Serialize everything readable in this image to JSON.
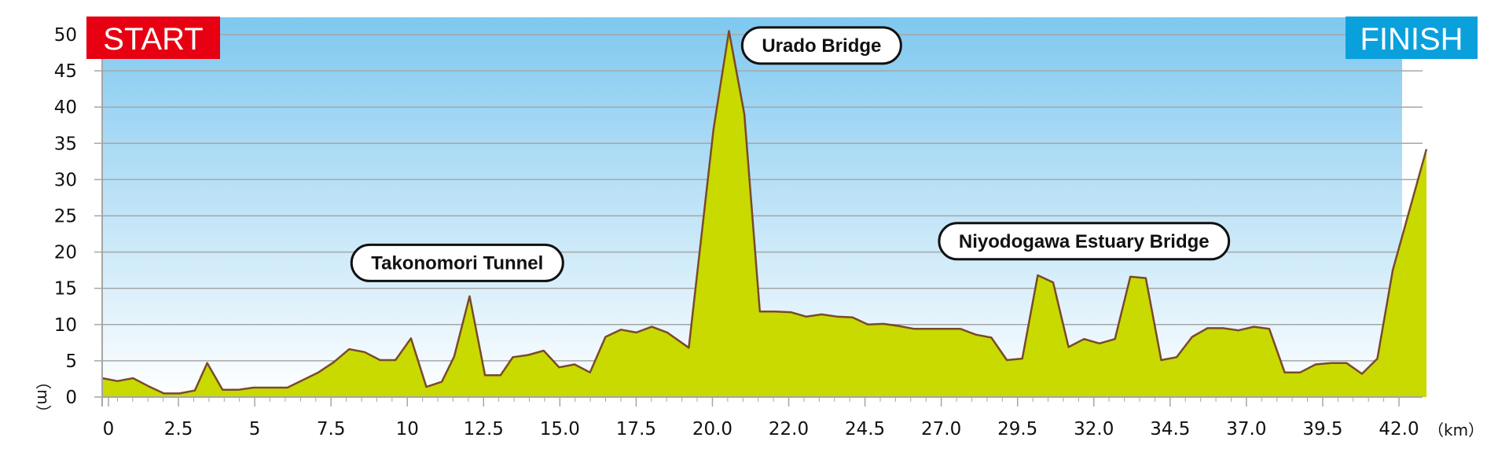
{
  "chart_data": {
    "type": "area",
    "title": "",
    "xlabel": "",
    "ylabel": "",
    "x_unit": "（km）",
    "y_unit": "（m）",
    "ylim": [
      0,
      50
    ],
    "xlim": [
      0,
      42.195
    ],
    "y_ticks": [
      "0",
      "5",
      "10",
      "15",
      "20",
      "25",
      "30",
      "35",
      "40",
      "45",
      "50"
    ],
    "x_ticks": [
      "0",
      "2.5",
      "5",
      "7.5",
      "10",
      "12.5",
      "15.0",
      "17.5",
      "20.0",
      "22.0",
      "24.5",
      "27.0",
      "29.5",
      "32.0",
      "34.5",
      "37.0",
      "39.5",
      "42.0"
    ],
    "grid": true,
    "start_label": "START",
    "finish_label": "FINISH",
    "colors": {
      "fill": "#c8da00",
      "line": "#7a4a2a",
      "sky_top": "#7fc8ef",
      "sky_bottom": "#ffffff",
      "start_badge": "#e60012",
      "finish_badge": "#0aa0dc",
      "grid": "#a6a6a6"
    },
    "annotations": [
      {
        "text": "Takonomori Tunnel",
        "x": 11.5,
        "y": 18.5
      },
      {
        "text": "Urado Bridge",
        "x": 23.3,
        "y": 48.5
      },
      {
        "text": "Niyodogawa Estuary Bridge",
        "x": 31.8,
        "y": 21.5
      }
    ],
    "series": [
      {
        "x": [
          0,
          0.5,
          1.0,
          1.5,
          2.0,
          2.5,
          3.0,
          3.4,
          3.9,
          4.4,
          4.9,
          5.5,
          6.0,
          7.0,
          7.5,
          8.0,
          8.5,
          9.0,
          9.5,
          10.0,
          10.5,
          11.0,
          11.4,
          11.9,
          12.4,
          12.9,
          13.3,
          13.8,
          14.3,
          14.8,
          15.3,
          15.8,
          16.3,
          16.8,
          17.3,
          17.8,
          18.3,
          19.0,
          19.8,
          20.3,
          20.8,
          21.3,
          21.8,
          22.3,
          22.8,
          23.3,
          23.8,
          24.3,
          24.8,
          25.3,
          25.8,
          26.3,
          26.8,
          27.3,
          27.8,
          28.3,
          28.8,
          29.3,
          29.8,
          30.3,
          30.8,
          31.3,
          31.8,
          32.3,
          32.8,
          33.3,
          33.8,
          34.3,
          34.8,
          35.3,
          35.8,
          36.3,
          36.8,
          37.3,
          37.8,
          38.3,
          38.8,
          39.3,
          39.8,
          40.3,
          40.8,
          41.3,
          41.8,
          42.195
        ],
        "values": [
          2.6,
          2.2,
          2.6,
          1.5,
          0.5,
          0.5,
          0.9,
          4.7,
          1.0,
          1.0,
          1.3,
          1.3,
          1.3,
          3.4,
          4.8,
          6.6,
          6.2,
          5.1,
          5.1,
          8.1,
          1.4,
          2.1,
          5.6,
          13.9,
          3.0,
          3.0,
          5.5,
          5.8,
          6.4,
          4.1,
          4.5,
          3.4,
          8.3,
          9.3,
          8.9,
          9.7,
          8.9,
          6.8,
          37.0,
          50.5,
          39.0,
          11.8,
          11.8,
          11.7,
          11.1,
          11.4,
          11.1,
          11.0,
          10.0,
          10.1,
          9.8,
          9.4,
          9.4,
          9.4,
          9.4,
          8.6,
          8.2,
          5.1,
          5.3,
          16.8,
          15.8,
          6.9,
          8.0,
          7.4,
          8.0,
          16.6,
          16.4,
          5.1,
          5.5,
          8.3,
          9.5,
          9.5,
          9.2,
          9.7,
          9.4,
          3.4,
          3.4,
          4.5,
          4.7,
          4.7,
          3.2,
          5.3,
          17.5,
          34.2
        ]
      }
    ]
  }
}
